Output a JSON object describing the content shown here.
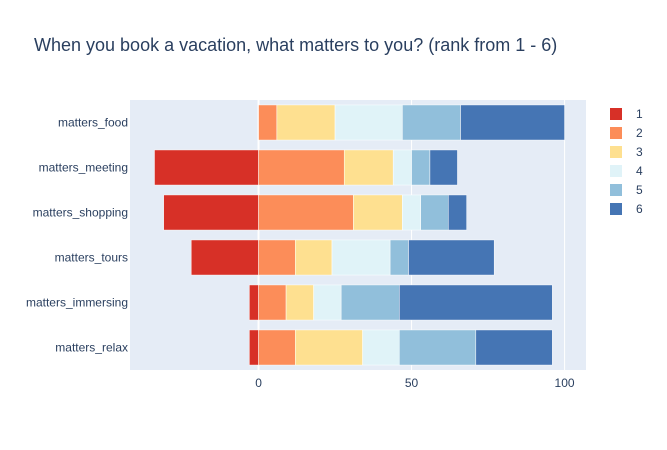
{
  "chart_data": {
    "type": "bar",
    "orientation": "horizontal",
    "barmode": "relative",
    "title": "When you book a vacation, what matters to you? (rank from 1 - 6)",
    "categories": [
      "matters_food",
      "matters_meeting",
      "matters_shopping",
      "matters_tours",
      "matters_immersing",
      "matters_relax"
    ],
    "series": [
      {
        "name": "1",
        "color": "#d73027",
        "values": [
          0,
          -34,
          -31,
          -22,
          -3,
          -3
        ]
      },
      {
        "name": "2",
        "color": "#fc8d59",
        "values": [
          6,
          28,
          31,
          12,
          9,
          12
        ]
      },
      {
        "name": "3",
        "color": "#fee090",
        "values": [
          19,
          16,
          16,
          12,
          9,
          22
        ]
      },
      {
        "name": "4",
        "color": "#e0f3f8",
        "values": [
          22,
          6,
          6,
          19,
          9,
          12
        ]
      },
      {
        "name": "5",
        "color": "#91bfdb",
        "values": [
          19,
          6,
          9,
          6,
          19,
          25
        ]
      },
      {
        "name": "6",
        "color": "#4575b4",
        "values": [
          34,
          9,
          6,
          28,
          50,
          25
        ]
      }
    ],
    "xticks": [
      0,
      50,
      100
    ],
    "xlim": [
      -42,
      107
    ],
    "grid": true,
    "legend": "right"
  }
}
